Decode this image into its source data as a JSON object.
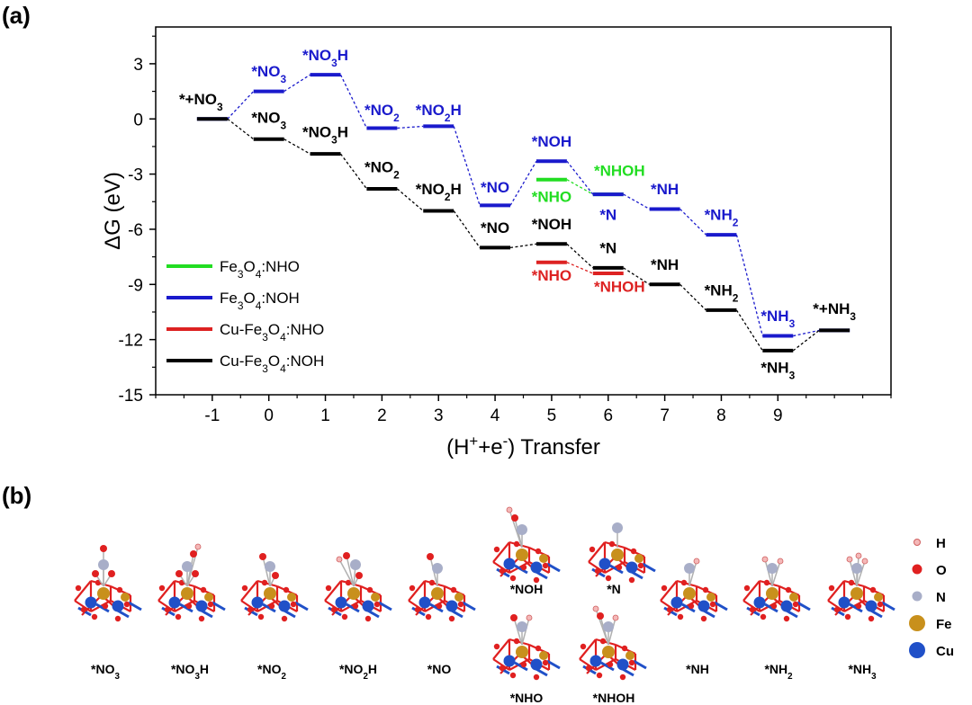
{
  "panel_a_label": "(a)",
  "panel_b_label": "(b)",
  "chart_data": {
    "type": "line",
    "xlabel_parts": [
      "(H",
      "+",
      "+e",
      "-",
      ") Transfer"
    ],
    "ylabel": "ΔG (eV)",
    "xlim": [
      -2,
      11
    ],
    "ylim": [
      -15,
      5
    ],
    "xticks": [
      -1,
      0,
      1,
      2,
      3,
      4,
      5,
      6,
      7,
      8,
      9
    ],
    "yticks": [
      3,
      0,
      -3,
      -6,
      -9,
      -12,
      -15
    ],
    "legend_position": "lower-left",
    "series": [
      {
        "name_parts": [
          "Fe",
          "3",
          "O",
          "4",
          ":NHO"
        ],
        "color": "#22dd22",
        "levels": [
          {
            "x": 5,
            "y": -3.3
          },
          {
            "x": 6,
            "y": -4.1
          }
        ]
      },
      {
        "name_parts": [
          "Fe",
          "3",
          "O",
          "4",
          ":NOH"
        ],
        "color": "#1a1acc",
        "levels": [
          {
            "x": -1,
            "y": 0
          },
          {
            "x": 0,
            "y": 1.5
          },
          {
            "x": 1,
            "y": 2.4
          },
          {
            "x": 2,
            "y": -0.5
          },
          {
            "x": 3,
            "y": -0.4
          },
          {
            "x": 4,
            "y": -4.7
          },
          {
            "x": 5,
            "y": -2.3
          },
          {
            "x": 6,
            "y": -4.1
          },
          {
            "x": 7,
            "y": -4.9
          },
          {
            "x": 8,
            "y": -6.3
          },
          {
            "x": 9,
            "y": -11.8
          },
          {
            "x": 10,
            "y": -11.5
          }
        ]
      },
      {
        "name_parts": [
          "Cu-Fe",
          "3",
          "O",
          "4",
          ":NHO"
        ],
        "color": "#dd2222",
        "levels": [
          {
            "x": 5,
            "y": -7.8
          },
          {
            "x": 6,
            "y": -8.4
          }
        ]
      },
      {
        "name_parts": [
          "Cu-Fe",
          "3",
          "O",
          "4",
          ":NOH"
        ],
        "color": "#000000",
        "levels": [
          {
            "x": -1,
            "y": 0
          },
          {
            "x": 0,
            "y": -1.1
          },
          {
            "x": 1,
            "y": -1.9
          },
          {
            "x": 2,
            "y": -3.8
          },
          {
            "x": 3,
            "y": -5.0
          },
          {
            "x": 4,
            "y": -7.0
          },
          {
            "x": 5,
            "y": -6.8
          },
          {
            "x": 6,
            "y": -8.1
          },
          {
            "x": 7,
            "y": -9.0
          },
          {
            "x": 8,
            "y": -10.4
          },
          {
            "x": 9,
            "y": -12.6
          },
          {
            "x": 10,
            "y": -11.5
          }
        ]
      }
    ],
    "annotations": [
      {
        "parts": [
          "*+NO",
          "3"
        ],
        "color": "#000000",
        "x": -1.2,
        "y": 0.8
      },
      {
        "parts": [
          "*NO",
          "3"
        ],
        "color": "#1a1acc",
        "x": 0,
        "y": 2.3
      },
      {
        "parts": [
          "*NO",
          "3",
          "H"
        ],
        "color": "#1a1acc",
        "x": 1,
        "y": 3.2
      },
      {
        "parts": [
          "*NO",
          "2"
        ],
        "color": "#1a1acc",
        "x": 2,
        "y": 0.2
      },
      {
        "parts": [
          "*NO",
          "2",
          "H"
        ],
        "color": "#1a1acc",
        "x": 3,
        "y": 0.2
      },
      {
        "parts": [
          "*NO"
        ],
        "color": "#1a1acc",
        "x": 4,
        "y": -4.0
      },
      {
        "parts": [
          "*NOH"
        ],
        "color": "#1a1acc",
        "x": 5,
        "y": -1.5
      },
      {
        "parts": [
          "*NHOH"
        ],
        "color": "#22dd22",
        "x": 6.2,
        "y": -3.1
      },
      {
        "parts": [
          "*NHO"
        ],
        "color": "#22dd22",
        "x": 5,
        "y": -4.5
      },
      {
        "parts": [
          "*N"
        ],
        "color": "#1a1acc",
        "x": 6,
        "y": -5.5
      },
      {
        "parts": [
          "*NH"
        ],
        "color": "#1a1acc",
        "x": 7,
        "y": -4.1
      },
      {
        "parts": [
          "*NH",
          "2"
        ],
        "color": "#1a1acc",
        "x": 8,
        "y": -5.5
      },
      {
        "parts": [
          "*NH",
          "3"
        ],
        "color": "#1a1acc",
        "x": 9,
        "y": -11.0
      },
      {
        "parts": [
          "*+NH",
          "3"
        ],
        "color": "#000000",
        "x": 10,
        "y": -10.6
      },
      {
        "parts": [
          "*NO",
          "3"
        ],
        "color": "#000000",
        "x": 0,
        "y": -0.2
      },
      {
        "parts": [
          "*NO",
          "3",
          "H"
        ],
        "color": "#000000",
        "x": 1,
        "y": -1.0
      },
      {
        "parts": [
          "*NO",
          "2"
        ],
        "color": "#000000",
        "x": 2,
        "y": -2.9
      },
      {
        "parts": [
          "*NO",
          "2",
          "H"
        ],
        "color": "#000000",
        "x": 3,
        "y": -4.1
      },
      {
        "parts": [
          "*NO"
        ],
        "color": "#000000",
        "x": 4,
        "y": -6.2
      },
      {
        "parts": [
          "*NOH"
        ],
        "color": "#000000",
        "x": 5,
        "y": -6.0
      },
      {
        "parts": [
          "*N"
        ],
        "color": "#000000",
        "x": 6,
        "y": -7.3
      },
      {
        "parts": [
          "*NH"
        ],
        "color": "#000000",
        "x": 7,
        "y": -8.2
      },
      {
        "parts": [
          "*NH",
          "2"
        ],
        "color": "#000000",
        "x": 8,
        "y": -9.6
      },
      {
        "parts": [
          "*NH",
          "3"
        ],
        "color": "#000000",
        "x": 9,
        "y": -13.8
      },
      {
        "parts": [
          "*NHO"
        ],
        "color": "#dd2222",
        "x": 5,
        "y": -8.8
      },
      {
        "parts": [
          "*NHOH"
        ],
        "color": "#dd2222",
        "x": 6.2,
        "y": -9.4
      }
    ]
  },
  "structures": [
    {
      "parts": [
        "*NO",
        "3"
      ],
      "ligand": "NO3"
    },
    {
      "parts": [
        "*NO",
        "3",
        "H"
      ],
      "ligand": "NO3H"
    },
    {
      "parts": [
        "*NO",
        "2"
      ],
      "ligand": "NO2"
    },
    {
      "parts": [
        "*NO",
        "2",
        "H"
      ],
      "ligand": "NO2H"
    },
    {
      "parts": [
        "*NO"
      ],
      "ligand": "NO"
    },
    {
      "parts": [
        "*NOH"
      ],
      "ligand": "NOH"
    },
    {
      "parts": [
        "*N"
      ],
      "ligand": "N"
    },
    {
      "parts": [
        "*NHO"
      ],
      "ligand": "NHO"
    },
    {
      "parts": [
        "*NHOH"
      ],
      "ligand": "NHOH"
    },
    {
      "parts": [
        "*NH"
      ],
      "ligand": "NH"
    },
    {
      "parts": [
        "*NH",
        "2"
      ],
      "ligand": "NH2"
    },
    {
      "parts": [
        "*NH",
        "3"
      ],
      "ligand": "NH3"
    }
  ],
  "atom_legend": [
    {
      "label": "H",
      "color": "#f4b8b8",
      "icon": "hydrogen-atom-icon"
    },
    {
      "label": "O",
      "color": "#e02020",
      "icon": "oxygen-atom-icon"
    },
    {
      "label": "N",
      "color": "#a8aec8",
      "icon": "nitrogen-atom-icon"
    },
    {
      "label": "Fe",
      "color": "#c8901c",
      "icon": "iron-atom-icon"
    },
    {
      "label": "Cu",
      "color": "#2050c8",
      "icon": "copper-atom-icon"
    }
  ]
}
